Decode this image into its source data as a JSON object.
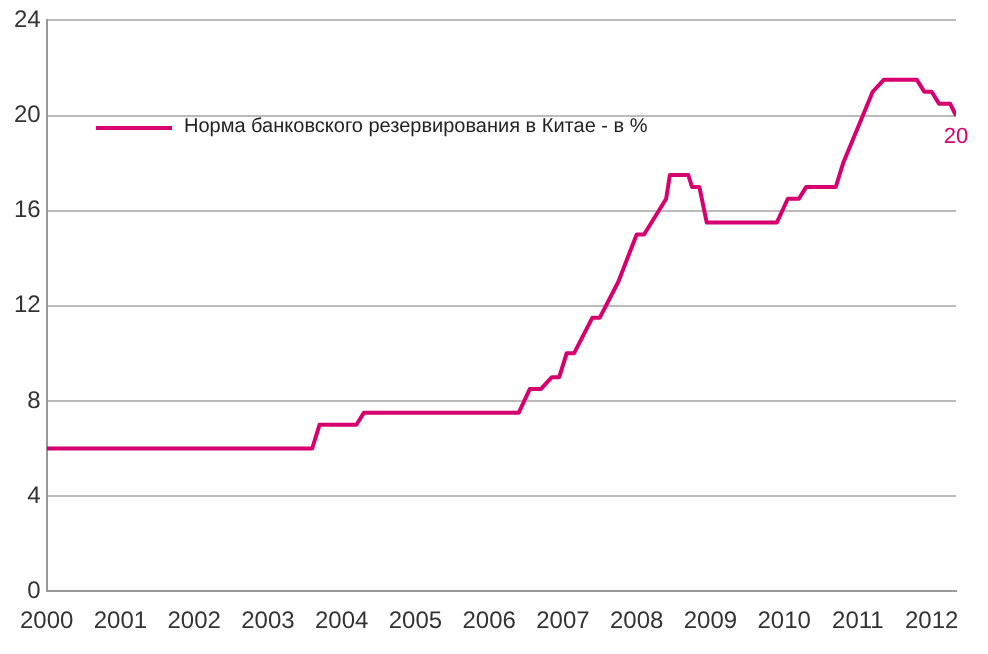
{
  "chart_data": {
    "type": "line",
    "legend": "top left",
    "grid": "y",
    "line_style": "solid",
    "marker": "none",
    "xlim": [
      2000,
      2012.33
    ],
    "xticks": [
      2000,
      2001,
      2002,
      2003,
      2004,
      2005,
      2006,
      2007,
      2008,
      2009,
      2010,
      2011,
      2012
    ],
    "ylim": [
      0,
      24
    ],
    "yticks": [
      0,
      4,
      8,
      12,
      16,
      20,
      24
    ],
    "series": [
      {
        "name": "Норма банковского резервирования в Китае - в %",
        "color": "#d6006f",
        "x": [
          2000,
          2003.6,
          2003.7,
          2004.2,
          2004.3,
          2006.4,
          2006.55,
          2006.7,
          2006.85,
          2006.95,
          2007.05,
          2007.15,
          2007.4,
          2007.5,
          2007.75,
          2008.0,
          2008.1,
          2008.4,
          2008.45,
          2008.7,
          2008.75,
          2008.85,
          2008.95,
          2009.9,
          2010.05,
          2010.2,
          2010.3,
          2010.7,
          2010.8,
          2011.0,
          2011.2,
          2011.35,
          2011.8,
          2011.9,
          2012.0,
          2012.1,
          2012.25,
          2012.33
        ],
        "values": [
          6,
          6,
          7,
          7,
          7.5,
          7.5,
          8.5,
          8.5,
          9,
          9,
          10,
          10,
          11.5,
          11.5,
          13,
          15,
          15,
          16.5,
          17.5,
          17.5,
          17,
          17,
          15.5,
          15.5,
          16.5,
          16.5,
          17,
          17,
          18,
          19.5,
          21,
          21.5,
          21.5,
          21,
          21,
          20.5,
          20.5,
          20
        ],
        "value_labels": [
          null,
          null,
          null,
          null,
          null,
          null,
          null,
          null,
          null,
          null,
          null,
          null,
          null,
          null,
          null,
          null,
          null,
          null,
          null,
          null,
          null,
          null,
          null,
          null,
          null,
          null,
          null,
          null,
          null,
          null,
          null,
          null,
          null,
          null,
          null,
          null,
          null,
          "20"
        ]
      }
    ]
  }
}
